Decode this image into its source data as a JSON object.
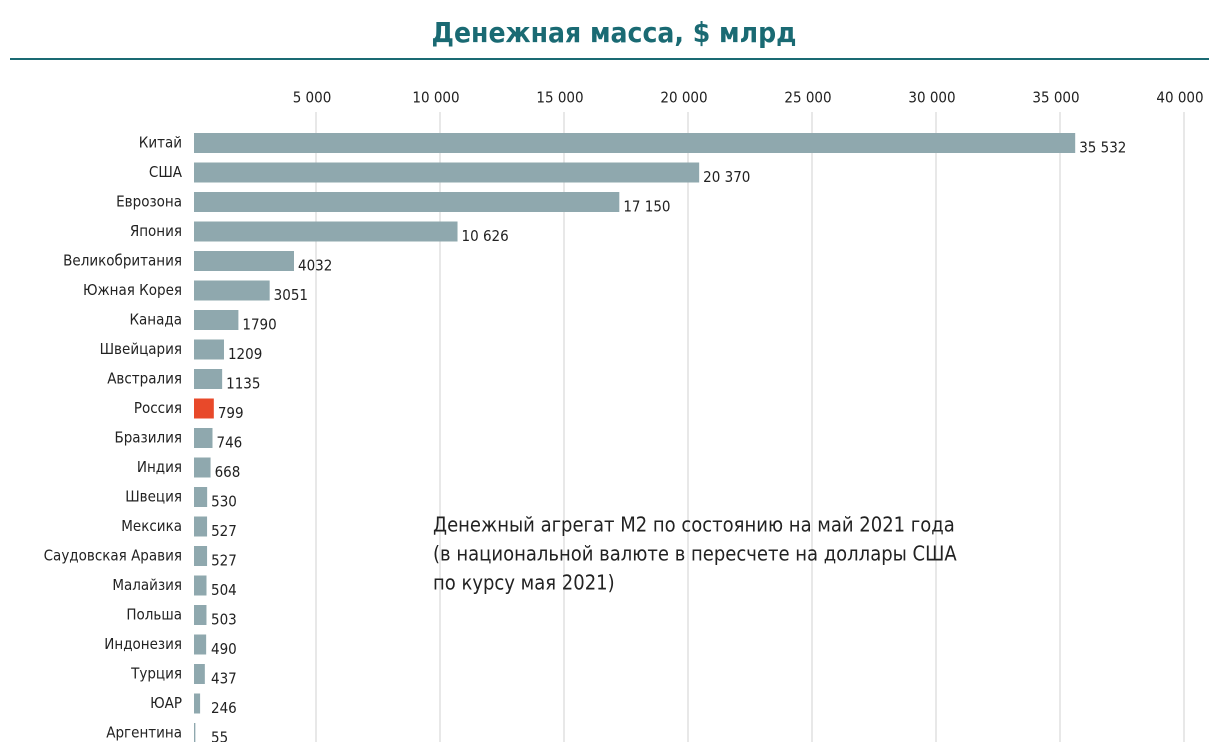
{
  "chart_data": {
    "type": "barh",
    "title": "Денежная масса, $ млрд",
    "categories": [
      "Китай",
      "США",
      "Еврозона",
      "Япония",
      "Великобритания",
      "Южная Корея",
      "Канада",
      "Швейцария",
      "Австралия",
      "Россия",
      "Бразилия",
      "Индия",
      "Швеция",
      "Мексика",
      "Саудовская Аравия",
      "Малайзия",
      "Польша",
      "Индонезия",
      "Турция",
      "ЮАР",
      "Аргентина"
    ],
    "values": [
      35532,
      20370,
      17150,
      10626,
      4032,
      3051,
      1790,
      1209,
      1135,
      799,
      746,
      668,
      530,
      527,
      527,
      504,
      503,
      490,
      437,
      246,
      55
    ],
    "value_labels": [
      "35 532",
      "20 370",
      "17 150",
      "10 626",
      "4032",
      "3051",
      "1790",
      "1209",
      "1135",
      "799",
      "746",
      "668",
      "530",
      "527",
      "527",
      "504",
      "503",
      "490",
      "437",
      "246",
      "55"
    ],
    "colors": [
      "#8fa8ae",
      "#8fa8ae",
      "#8fa8ae",
      "#8fa8ae",
      "#8fa8ae",
      "#8fa8ae",
      "#8fa8ae",
      "#8fa8ae",
      "#8fa8ae",
      "#e8492a",
      "#8fa8ae",
      "#8fa8ae",
      "#8fa8ae",
      "#8fa8ae",
      "#8fa8ae",
      "#8fa8ae",
      "#8fa8ae",
      "#8fa8ae",
      "#8fa8ae",
      "#8fa8ae",
      "#8fa8ae"
    ],
    "xlim": [
      0,
      40000
    ],
    "xticks": [
      {
        "value": 5000,
        "label": "5 000"
      },
      {
        "value": 10000,
        "label": "10 000"
      },
      {
        "value": 15000,
        "label": "15 000"
      },
      {
        "value": 20000,
        "label": "20 000"
      },
      {
        "value": 25000,
        "label": "25 000"
      },
      {
        "value": 30000,
        "label": "30 000"
      },
      {
        "value": 35000,
        "label": "35 000"
      },
      {
        "value": 40000,
        "label": "40 000"
      }
    ],
    "grid": true,
    "annotation": [
      "Денежный агрегат М2 по состоянию на май 2021 года",
      "(в национальной валюте в пересчете на доллары США",
      "по курсу мая 2021)"
    ]
  }
}
